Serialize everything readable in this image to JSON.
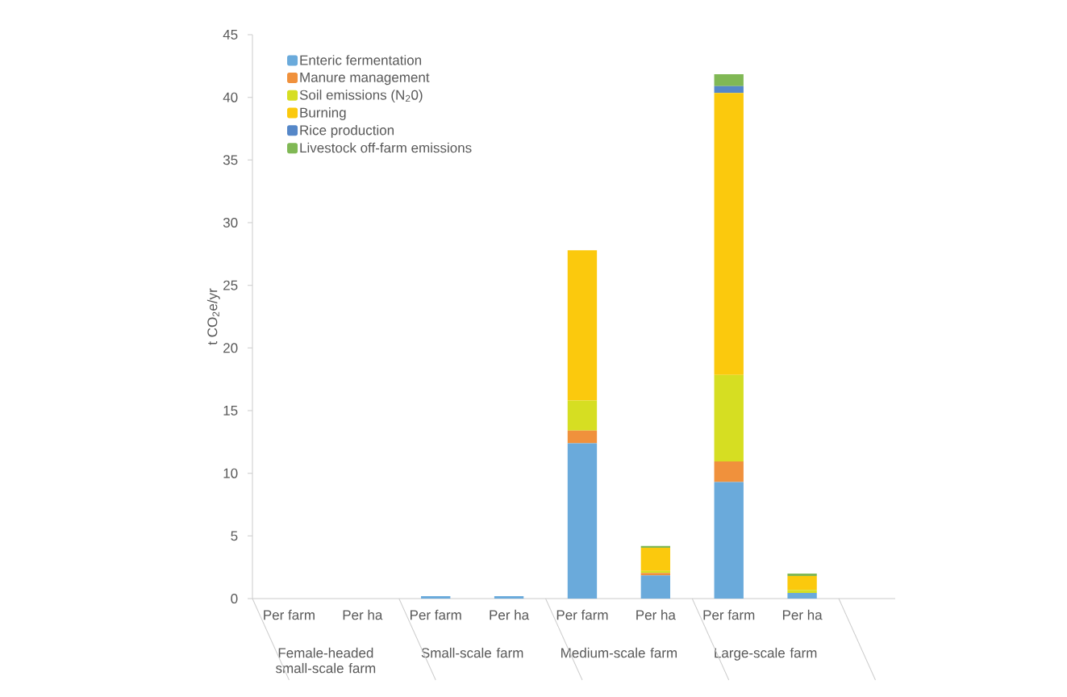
{
  "chart_data": {
    "type": "bar",
    "stacked": true,
    "ylabel": "t CO$_{2}$e/yr",
    "categories": [
      "Per farm",
      "Per ha",
      "Per farm",
      "Per ha",
      "Per farm",
      "Per ha",
      "Per farm",
      "Per ha"
    ],
    "series": [
      {
        "name": "Enteric fermentation",
        "color": "#6aaadb",
        "values": [
          0,
          0,
          0.2,
          0.2,
          12.4,
          1.85,
          9.3,
          0.45
        ]
      },
      {
        "name": "Manure management",
        "color": "#f0913c",
        "values": [
          0,
          0,
          0,
          0,
          1.0,
          0.2,
          1.65,
          0
        ]
      },
      {
        "name": "Soil emissions (N$_{2}$0)",
        "color": "#d6de22",
        "values": [
          0,
          0,
          0,
          0,
          2.4,
          0.15,
          6.9,
          0.25
        ]
      },
      {
        "name": "Burning",
        "color": "#fbc90d",
        "values": [
          0,
          0,
          0,
          0,
          12.0,
          1.85,
          22.5,
          1.1
        ]
      },
      {
        "name": "Rice production",
        "color": "#5587c8",
        "values": [
          0,
          0,
          0,
          0,
          0,
          0,
          0.55,
          0
        ]
      },
      {
        "name": "Livestock off-farm emissions",
        "color": "#80b855",
        "values": [
          0,
          0,
          0,
          0,
          0,
          0.15,
          0.95,
          0.2
        ]
      }
    ],
    "ylim": [
      0,
      45
    ],
    "yticks": [
      0,
      5,
      10,
      15,
      20,
      25,
      30,
      35,
      40,
      45
    ],
    "legend": "top left",
    "annotations": [
      "Female-headed small-scale farm",
      "Small-scale farm",
      "Medium-scale farm",
      "Large-scale farm"
    ]
  }
}
